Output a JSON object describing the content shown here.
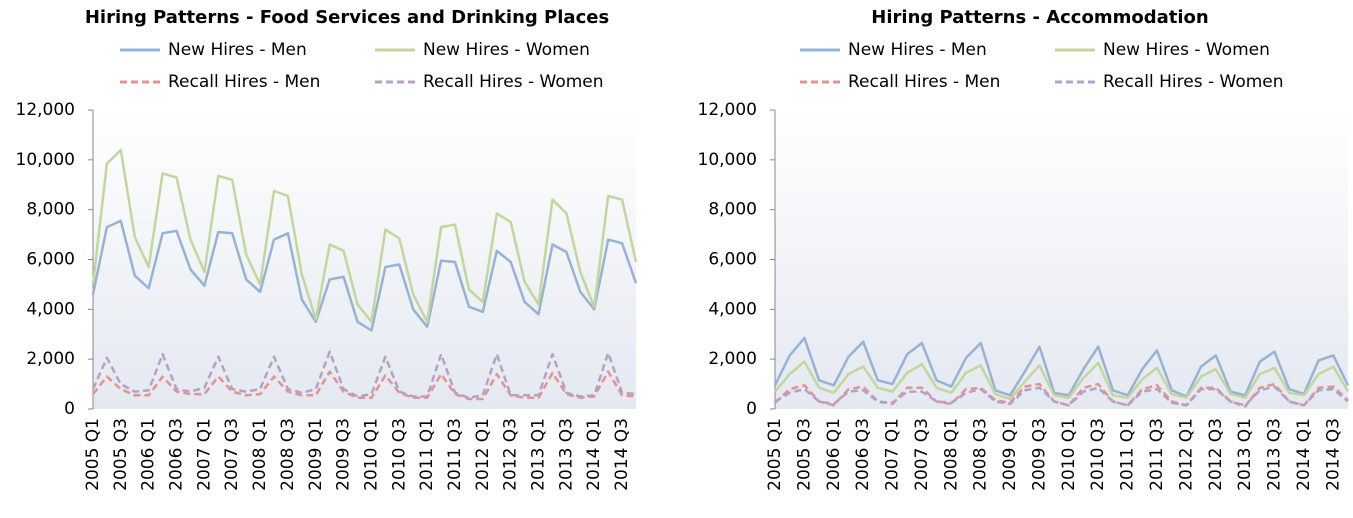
{
  "chart_data": [
    {
      "type": "line",
      "title": "Hiring Patterns - Food Services and Drinking Places",
      "categories": [
        "2005 Q1",
        null,
        "2005 Q3",
        null,
        "2006 Q1",
        null,
        "2006 Q3",
        null,
        "2007 Q1",
        null,
        "2007 Q3",
        null,
        "2008 Q1",
        null,
        "2008 Q3",
        null,
        "2009 Q1",
        null,
        "2009 Q3",
        null,
        "2010 Q1",
        null,
        "2010 Q3",
        null,
        "2011 Q1",
        null,
        "2011 Q3",
        null,
        "2012 Q1",
        null,
        "2012 Q3",
        null,
        "2013 Q1",
        null,
        "2013 Q3",
        null,
        "2014 Q1",
        null,
        "2014 Q3",
        null
      ],
      "ylim": [
        0,
        12000
      ],
      "yticks": [
        0,
        {
          "value": 2000,
          "label": "2,000"
        },
        {
          "value": 4000,
          "label": "4,000"
        },
        {
          "value": 6000,
          "label": "6,000"
        },
        {
          "value": 8000,
          "label": "8,000"
        },
        {
          "value": 10000,
          "label": "10,000"
        },
        {
          "value": 12000,
          "label": "12,000"
        }
      ],
      "series": [
        {
          "name": "New Hires - Men",
          "color": "#95b3d7",
          "dashed": false,
          "values": [
            4600,
            7300,
            7550,
            5350,
            4850,
            7050,
            7150,
            5600,
            4950,
            7100,
            7050,
            5200,
            4700,
            6800,
            7050,
            4400,
            3500,
            5200,
            5300,
            3500,
            3150,
            5700,
            5800,
            4000,
            3300,
            5950,
            5900,
            4100,
            3900,
            6350,
            5900,
            4300,
            3800,
            6600,
            6300,
            4700,
            4000,
            6800,
            6650,
            5050
          ]
        },
        {
          "name": "New Hires - Women",
          "color": "#c3d69b",
          "dashed": false,
          "values": [
            5000,
            9850,
            10400,
            6900,
            5700,
            9450,
            9300,
            6800,
            5500,
            9350,
            9200,
            6200,
            5000,
            8750,
            8550,
            5400,
            3600,
            6600,
            6350,
            4200,
            3500,
            7200,
            6850,
            4600,
            3500,
            7300,
            7400,
            4800,
            4300,
            7850,
            7500,
            5100,
            4200,
            8400,
            7850,
            5500,
            4100,
            8550,
            8400,
            5900
          ]
        },
        {
          "name": "Recall Hires - Men",
          "color": "#e6938e",
          "dashed": true,
          "values": [
            600,
            1300,
            800,
            550,
            550,
            1300,
            700,
            600,
            600,
            1300,
            700,
            550,
            600,
            1300,
            700,
            550,
            550,
            1500,
            700,
            450,
            450,
            1350,
            650,
            450,
            450,
            1400,
            600,
            400,
            400,
            1400,
            550,
            450,
            450,
            1450,
            600,
            450,
            500,
            1500,
            550,
            500
          ]
        },
        {
          "name": "Recall Hires - Women",
          "color": "#b3a2c7",
          "dashed": true,
          "values": [
            800,
            2050,
            1000,
            700,
            750,
            2200,
            800,
            700,
            850,
            2100,
            800,
            700,
            800,
            2100,
            800,
            650,
            800,
            2300,
            800,
            500,
            600,
            2100,
            700,
            500,
            500,
            2200,
            650,
            450,
            550,
            2200,
            550,
            550,
            550,
            2200,
            650,
            500,
            550,
            2250,
            650,
            600
          ]
        }
      ]
    },
    {
      "type": "line",
      "title": "Hiring Patterns - Accommodation",
      "categories": [
        "2005 Q1",
        null,
        "2005 Q3",
        null,
        "2006 Q1",
        null,
        "2006 Q3",
        null,
        "2007 Q1",
        null,
        "2007 Q3",
        null,
        "2008 Q1",
        null,
        "2008 Q3",
        null,
        "2009 Q1",
        null,
        "2009 Q3",
        null,
        "2010 Q1",
        null,
        "2010 Q3",
        null,
        "2011 Q1",
        null,
        "2011 Q3",
        null,
        "2012 Q1",
        null,
        "2012 Q3",
        null,
        "2013 Q1",
        null,
        "2013 Q3",
        null,
        "2014 Q1",
        null,
        "2014 Q3",
        null
      ],
      "ylim": [
        0,
        12000
      ],
      "yticks": [
        0,
        {
          "value": 2000,
          "label": "2,000"
        },
        {
          "value": 4000,
          "label": "4,000"
        },
        {
          "value": 6000,
          "label": "6,000"
        },
        {
          "value": 8000,
          "label": "8,000"
        },
        {
          "value": 10000,
          "label": "10,000"
        },
        {
          "value": 12000,
          "label": "12,000"
        }
      ],
      "series": [
        {
          "name": "New Hires - Men",
          "color": "#95b3d7",
          "dashed": false,
          "values": [
            950,
            2150,
            2850,
            1150,
            950,
            2100,
            2700,
            1150,
            1000,
            2200,
            2650,
            1150,
            900,
            2050,
            2650,
            750,
            550,
            1500,
            2500,
            650,
            550,
            1600,
            2500,
            750,
            550,
            1600,
            2350,
            750,
            500,
            1700,
            2150,
            700,
            550,
            1900,
            2300,
            800,
            600,
            1950,
            2150,
            950
          ]
        },
        {
          "name": "New Hires - Women",
          "color": "#c3d69b",
          "dashed": false,
          "values": [
            700,
            1400,
            1900,
            850,
            650,
            1400,
            1700,
            850,
            700,
            1450,
            1800,
            850,
            650,
            1450,
            1750,
            600,
            400,
            1100,
            1750,
            550,
            450,
            1250,
            1850,
            550,
            450,
            1200,
            1650,
            600,
            450,
            1300,
            1600,
            600,
            450,
            1400,
            1650,
            650,
            550,
            1400,
            1700,
            700
          ]
        },
        {
          "name": "Recall Hires - Men",
          "color": "#e6938e",
          "dashed": true,
          "values": [
            250,
            800,
            950,
            300,
            150,
            800,
            900,
            300,
            200,
            850,
            850,
            300,
            200,
            800,
            850,
            350,
            250,
            900,
            1000,
            300,
            150,
            850,
            1000,
            300,
            150,
            800,
            950,
            300,
            150,
            850,
            850,
            300,
            100,
            850,
            1000,
            300,
            150,
            850,
            900,
            350
          ]
        },
        {
          "name": "Recall Hires - Women",
          "color": "#b3a2c7",
          "dashed": true,
          "values": [
            300,
            650,
            800,
            300,
            200,
            700,
            750,
            300,
            250,
            700,
            700,
            300,
            250,
            650,
            800,
            300,
            200,
            750,
            850,
            300,
            150,
            700,
            850,
            300,
            150,
            700,
            800,
            250,
            150,
            800,
            800,
            300,
            150,
            750,
            900,
            300,
            150,
            750,
            800,
            300
          ]
        }
      ]
    }
  ]
}
